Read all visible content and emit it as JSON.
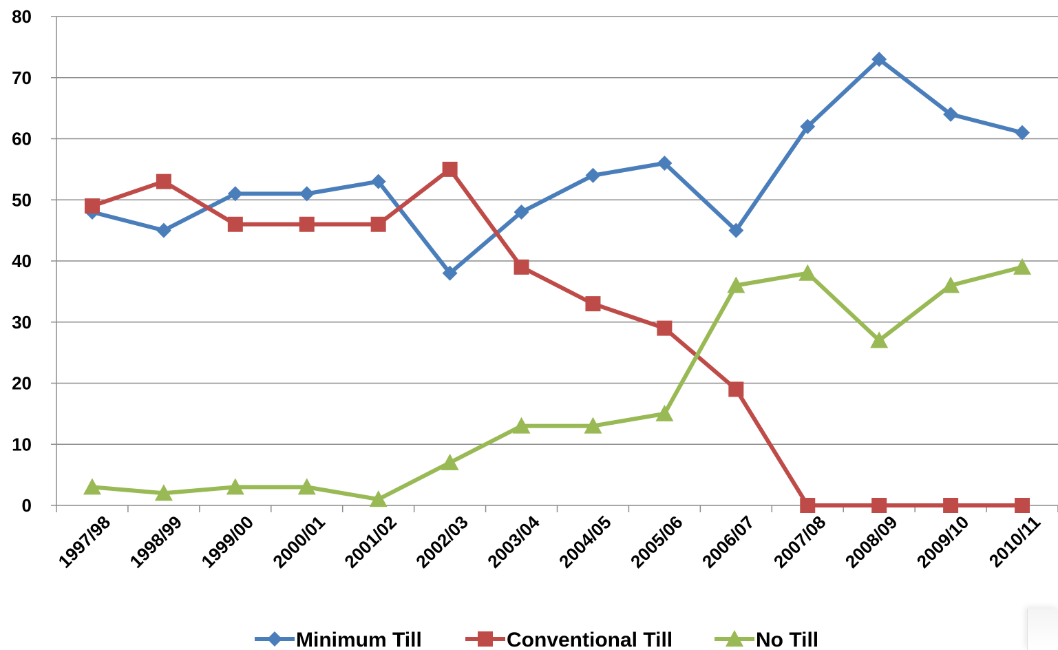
{
  "chart_data": {
    "type": "line",
    "title": "",
    "xlabel": "",
    "ylabel": "",
    "ylim": [
      0,
      80
    ],
    "yticks": [
      0,
      10,
      20,
      30,
      40,
      50,
      60,
      70,
      80
    ],
    "grid": "horizontal",
    "legend_position": "bottom",
    "categories": [
      "1997/98",
      "1998/99",
      "1999/00",
      "2000/01",
      "2001/02",
      "2002/03",
      "2003/04",
      "2004/05",
      "2005/06",
      "2006/07",
      "2007/08",
      "2008/09",
      "2009/10",
      "2010/11"
    ],
    "series": [
      {
        "name": "Minimum Till",
        "color": "#4a7ebb",
        "marker": "diamond",
        "values": [
          48,
          45,
          51,
          51,
          53,
          38,
          48,
          54,
          56,
          45,
          62,
          73,
          64,
          61
        ]
      },
      {
        "name": "Conventional Till",
        "color": "#be4b48",
        "marker": "square",
        "values": [
          49,
          53,
          46,
          46,
          46,
          55,
          39,
          33,
          29,
          19,
          0,
          0,
          0,
          0
        ]
      },
      {
        "name": "No Till",
        "color": "#98b954",
        "marker": "triangle",
        "values": [
          3,
          2,
          3,
          3,
          1,
          7,
          13,
          13,
          15,
          36,
          38,
          27,
          36,
          39
        ]
      }
    ]
  }
}
